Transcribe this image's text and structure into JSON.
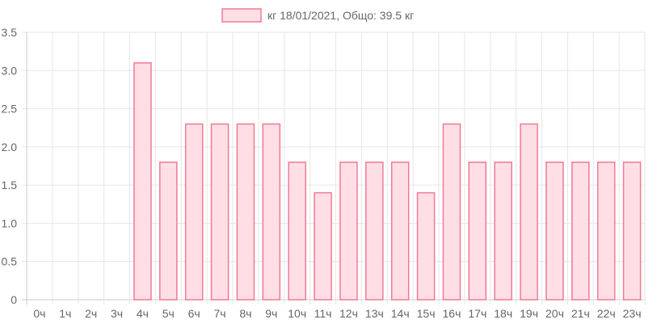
{
  "chart_data": {
    "type": "bar",
    "categories": [
      "0ч",
      "1ч",
      "2ч",
      "3ч",
      "4ч",
      "5ч",
      "6ч",
      "7ч",
      "8ч",
      "9ч",
      "10ч",
      "11ч",
      "12ч",
      "13ч",
      "14ч",
      "15ч",
      "16ч",
      "17ч",
      "18ч",
      "19ч",
      "20ч",
      "21ч",
      "22ч",
      "23ч"
    ],
    "series": [
      {
        "name": "кг 18/01/2021, Общо: 39.5 кг",
        "values": [
          0,
          0,
          0,
          0,
          3.1,
          1.8,
          2.3,
          2.3,
          2.3,
          2.3,
          1.8,
          1.4,
          1.8,
          1.8,
          1.8,
          1.4,
          2.3,
          1.8,
          1.8,
          2.3,
          1.8,
          1.8,
          1.8,
          1.8
        ]
      }
    ],
    "y_ticks": [
      "0",
      "0.5",
      "1.0",
      "1.5",
      "2.0",
      "2.5",
      "3.0",
      "3.5"
    ],
    "ylim": [
      0,
      3.5
    ],
    "grid": true,
    "legend_position": "top-center",
    "title": "",
    "xlabel": "",
    "ylabel": "",
    "colors": {
      "bar_fill": "#ffdfe5",
      "bar_stroke": "#f07a93",
      "grid": "#e6e6e6",
      "axis": "#c8c8c8",
      "text": "#666666"
    }
  }
}
